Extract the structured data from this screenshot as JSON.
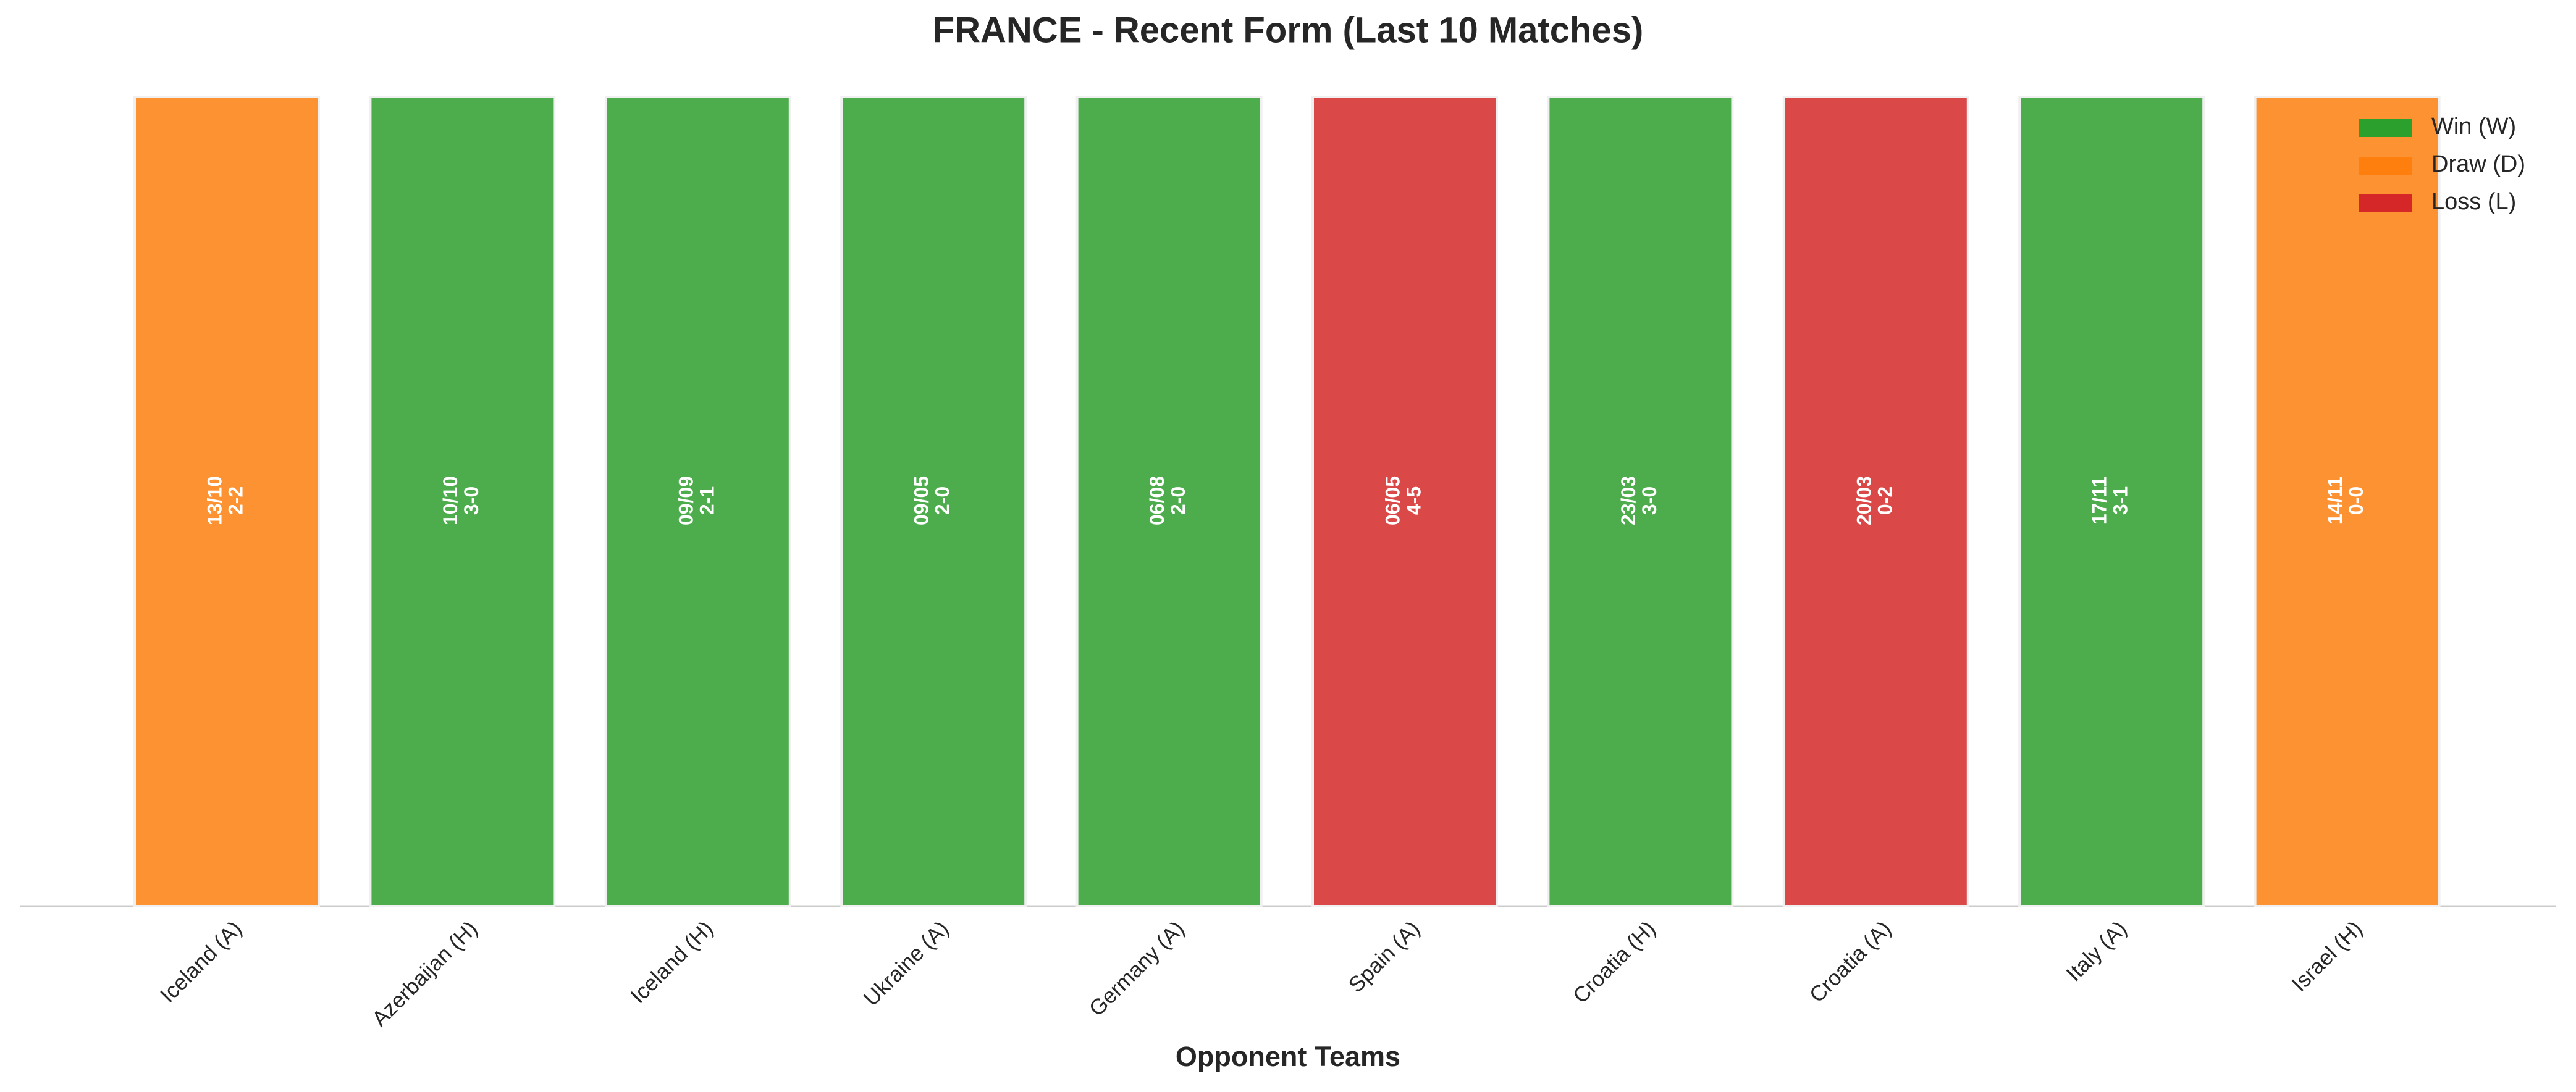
{
  "chart_data": {
    "type": "bar",
    "title": "FRANCE - Recent Form (Last 10 Matches)",
    "x_label": "Opponent Teams",
    "categories": [
      "Iceland (A)",
      "Azerbaijan (H)",
      "Iceland (H)",
      "Ukraine (A)",
      "Germany (A)",
      "Spain (A)",
      "Croatia (H)",
      "Croatia (A)",
      "Italy (A)",
      "Israel (H)"
    ],
    "values": [
      1,
      1,
      1,
      1,
      1,
      1,
      1,
      1,
      1,
      1
    ],
    "dates": [
      "13/10",
      "10/10",
      "09/09",
      "09/05",
      "06/08",
      "06/05",
      "23/03",
      "20/03",
      "17/11",
      "14/11"
    ],
    "scores": [
      "2-2",
      "3-0",
      "2-1",
      "2-0",
      "2-0",
      "4-5",
      "3-0",
      "0-2",
      "3-1",
      "0-0"
    ],
    "colors": [
      "#fd9233",
      "#4dad4d",
      "#4dad4d",
      "#4dad4d",
      "#4dad4d",
      "#db4848",
      "#4dad4d",
      "#db4848",
      "#4dad4d",
      "#fd9233"
    ],
    "ylim": [
      0,
      1
    ],
    "legend": [
      {
        "name": "Win (W)",
        "color": "#2ca02c"
      },
      {
        "name": "Draw (D)",
        "color": "#ff7f0e"
      },
      {
        "name": "Loss (L)",
        "color": "#d62728"
      }
    ]
  }
}
